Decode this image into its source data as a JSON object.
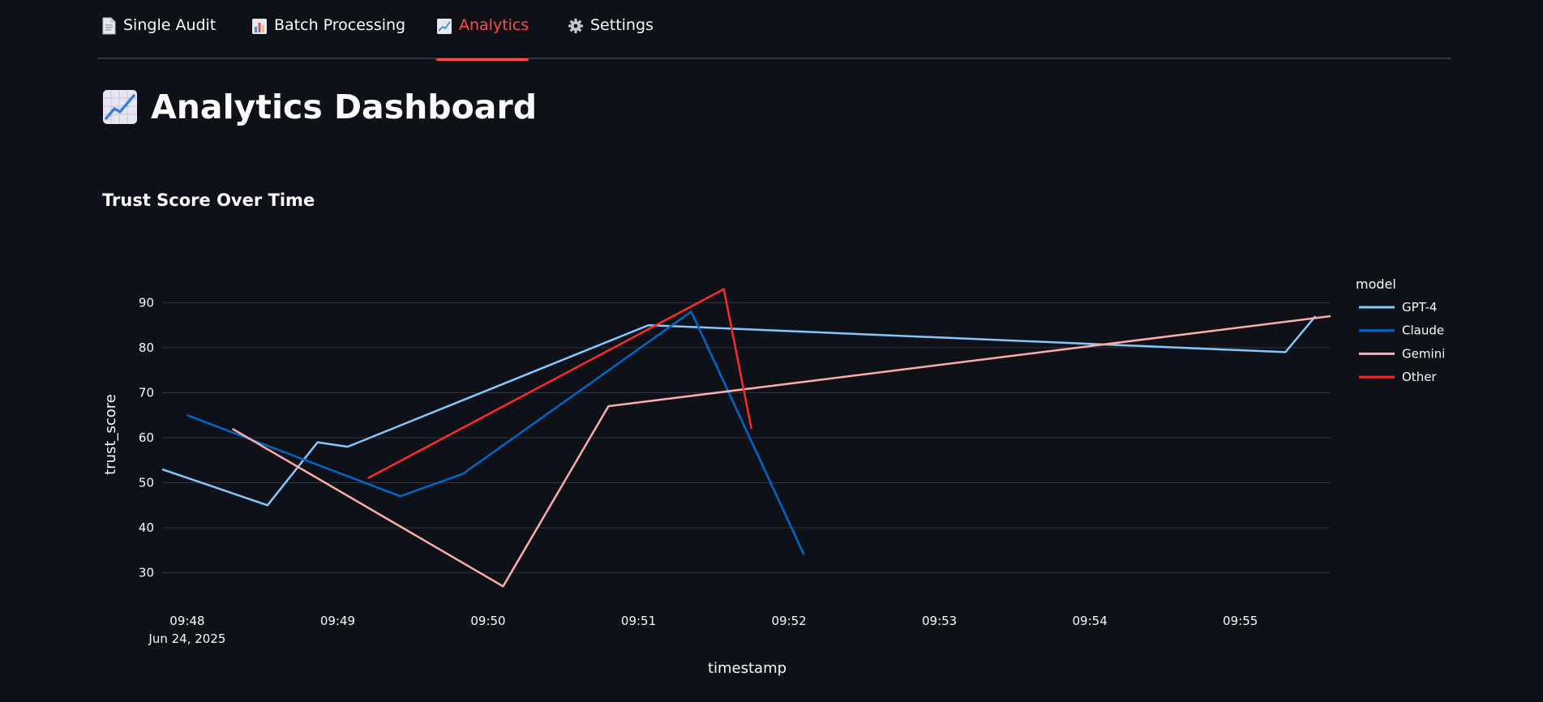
{
  "tabs": [
    {
      "label": "Single Audit",
      "icon": "document-icon"
    },
    {
      "label": "Batch Processing",
      "icon": "bar-chart-icon"
    },
    {
      "label": "Analytics",
      "icon": "line-chart-icon",
      "active": true
    },
    {
      "label": "Settings",
      "icon": "gear-icon"
    }
  ],
  "page": {
    "title": "Analytics Dashboard",
    "title_icon": "line-chart-icon"
  },
  "chart_section": {
    "title": "Trust Score Over Time"
  },
  "colors": {
    "background": "#0e1117",
    "accent": "#ff4b4b",
    "gridline": "#31333f"
  },
  "chart_data": {
    "type": "line",
    "title": "",
    "xlabel": "timestamp",
    "ylabel": "trust_score",
    "x_ticks": [
      "09:48",
      "09:49",
      "09:50",
      "09:51",
      "09:52",
      "09:53",
      "09:54",
      "09:55"
    ],
    "x_date_label": "Jun 24, 2025",
    "y_ticks": [
      30,
      40,
      50,
      60,
      70,
      80,
      90
    ],
    "xlim": [
      "09:47:50",
      "09:55:36"
    ],
    "ylim": [
      24,
      96
    ],
    "grid": true,
    "legend": {
      "title": "model",
      "placement": "right"
    },
    "series": [
      {
        "name": "GPT-4",
        "color": "#83c9ff",
        "points": [
          [
            "09:47:50",
            53
          ],
          [
            "09:48:32",
            45
          ],
          [
            "09:48:52",
            59
          ],
          [
            "09:49:04",
            58
          ],
          [
            "09:51:04",
            85
          ],
          [
            "09:55:18",
            79
          ],
          [
            "09:55:30",
            87
          ]
        ]
      },
      {
        "name": "Claude",
        "color": "#0068c9",
        "points": [
          [
            "09:48:00",
            65
          ],
          [
            "09:49:25",
            47
          ],
          [
            "09:49:50",
            52
          ],
          [
            "09:51:21",
            88
          ],
          [
            "09:52:06",
            34
          ]
        ]
      },
      {
        "name": "Gemini",
        "color": "#ffabab",
        "points": [
          [
            "09:48:18",
            62
          ],
          [
            "09:50:06",
            27
          ],
          [
            "09:50:48",
            67
          ],
          [
            "09:55:36",
            87
          ]
        ]
      },
      {
        "name": "Other",
        "color": "#ff2b2b",
        "points": [
          [
            "09:49:12",
            51
          ],
          [
            "09:51:34",
            93
          ],
          [
            "09:51:45",
            62
          ]
        ]
      }
    ]
  }
}
